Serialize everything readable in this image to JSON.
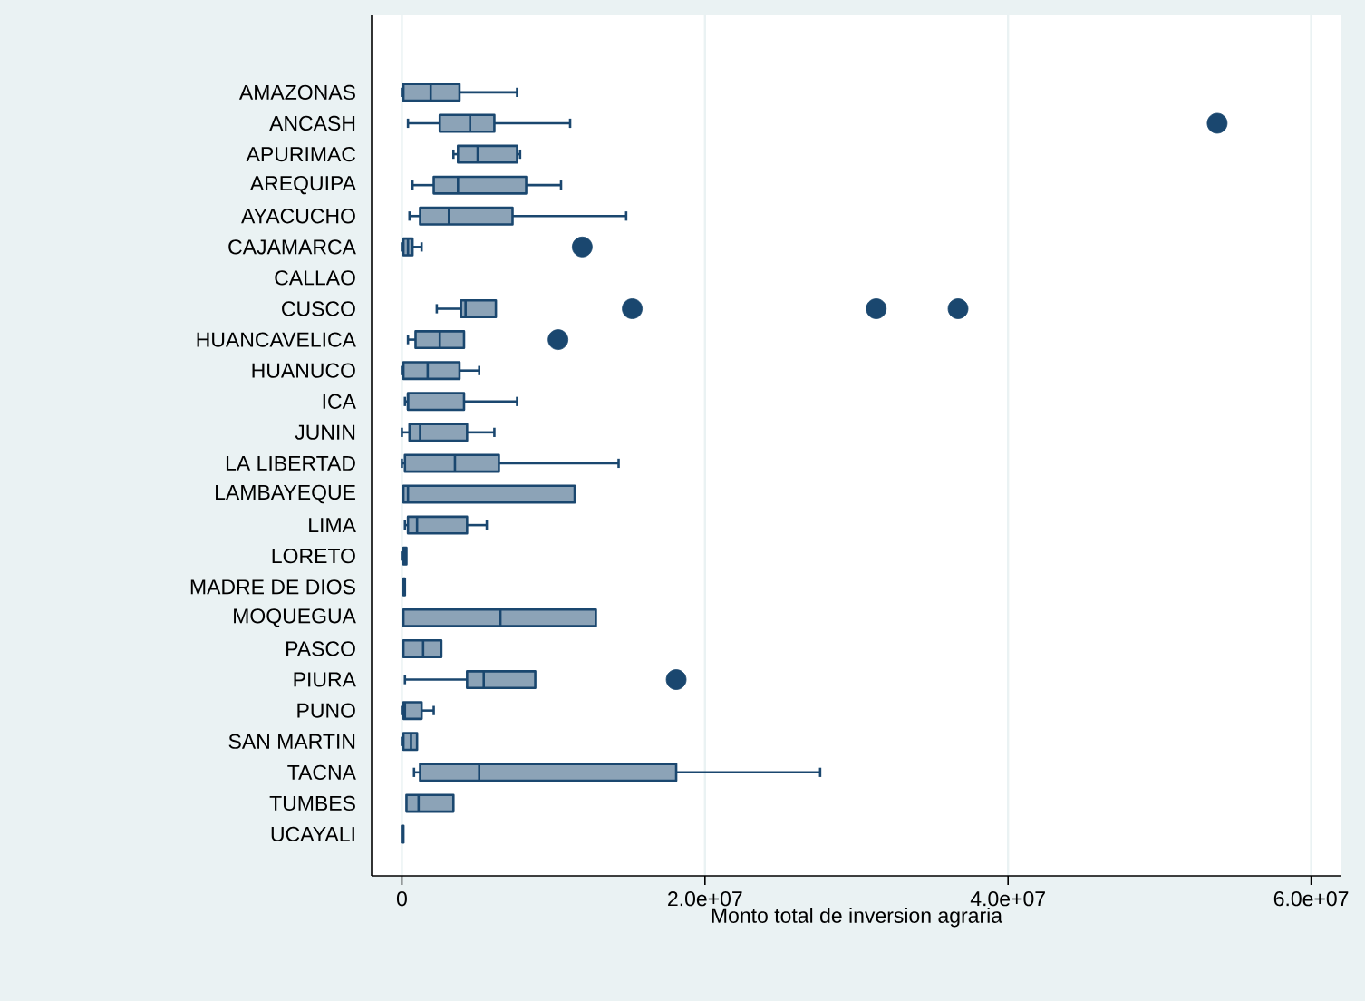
{
  "chart_data": {
    "type": "box",
    "orientation": "horizontal",
    "xlabel": "Monto total de inversion agraria",
    "categories": [
      "AMAZONAS",
      "ANCASH",
      "APURIMAC",
      "AREQUIPA",
      "AYACUCHO",
      "CAJAMARCA",
      "CALLAO",
      "CUSCO",
      "HUANCAVELICA",
      "HUANUCO",
      "ICA",
      "JUNIN",
      "LA LIBERTAD",
      "LAMBAYEQUE",
      "LIMA",
      "LORETO",
      "MADRE DE DIOS",
      "MOQUEGUA",
      "PASCO",
      "PIURA",
      "PUNO",
      "SAN MARTIN",
      "TACNA",
      "TUMBES",
      "UCAYALI"
    ],
    "xlim": [
      -2000000,
      62000000
    ],
    "xticks": [
      0,
      {
        "value": 20000000,
        "label": "2.0e+07"
      },
      {
        "value": 40000000,
        "label": "4.0e+07"
      },
      {
        "value": 60000000,
        "label": "6.0e+07"
      }
    ],
    "grid": "x",
    "series": [
      {
        "color": "#1a476f",
        "boxes": [
          {
            "low": 0,
            "q1": 100000,
            "median": 1900000,
            "q3": 3800000,
            "high": 7600000
          },
          {
            "low": 400000,
            "q1": 2500000,
            "median": 4500000,
            "q3": 6100000,
            "high": 11100000,
            "outliers": [
              53800000
            ]
          },
          {
            "low": 3400000,
            "q1": 3700000,
            "median": 5000000,
            "q3": 7600000,
            "high": 7800000
          },
          {
            "low": 700000,
            "q1": 2100000,
            "median": 3700000,
            "q3": 8200000,
            "high": 10500000
          },
          {
            "low": 500000,
            "q1": 1200000,
            "median": 3100000,
            "q3": 7300000,
            "high": 14800000
          },
          {
            "low": 0,
            "q1": 100000,
            "median": 400000,
            "q3": 700000,
            "high": 1300000,
            "outliers": [
              11900000
            ]
          },
          null,
          {
            "low": 2300000,
            "q1": 3900000,
            "median": 4200000,
            "q3": 6200000,
            "high": 6200000,
            "outliers": [
              15200000,
              31300000,
              36700000
            ]
          },
          {
            "low": 400000,
            "q1": 900000,
            "median": 2500000,
            "q3": 4100000,
            "high": 4100000,
            "outliers": [
              10300000
            ]
          },
          {
            "low": 0,
            "q1": 100000,
            "median": 1700000,
            "q3": 3800000,
            "high": 5100000
          },
          {
            "low": 200000,
            "q1": 400000,
            "median": 400000,
            "q3": 4100000,
            "high": 7600000
          },
          {
            "low": 0,
            "q1": 500000,
            "median": 1200000,
            "q3": 4300000,
            "high": 6100000
          },
          {
            "low": 0,
            "q1": 200000,
            "median": 3500000,
            "q3": 6400000,
            "high": 14300000
          },
          {
            "low": 100000,
            "q1": 100000,
            "median": 400000,
            "q3": 11400000,
            "high": 11400000
          },
          {
            "low": 200000,
            "q1": 400000,
            "median": 1000000,
            "q3": 4300000,
            "high": 5600000
          },
          {
            "low": 0,
            "q1": 100000,
            "median": 200000,
            "q3": 300000,
            "high": 300000
          },
          {
            "low": 100000,
            "q1": 100000,
            "median": 100000,
            "q3": 200000,
            "high": 200000
          },
          {
            "low": 100000,
            "q1": 100000,
            "median": 6500000,
            "q3": 12800000,
            "high": 12800000
          },
          {
            "low": 100000,
            "q1": 100000,
            "median": 1400000,
            "q3": 2600000,
            "high": 2600000
          },
          {
            "low": 200000,
            "q1": 4300000,
            "median": 5400000,
            "q3": 8800000,
            "high": 8800000,
            "outliers": [
              18100000
            ]
          },
          {
            "low": 0,
            "q1": 100000,
            "median": 200000,
            "q3": 1300000,
            "high": 2100000
          },
          {
            "low": 0,
            "q1": 100000,
            "median": 600000,
            "q3": 1000000,
            "high": 1000000
          },
          {
            "low": 800000,
            "q1": 1200000,
            "median": 5100000,
            "q3": 18100000,
            "high": 27600000
          },
          {
            "low": 300000,
            "q1": 300000,
            "median": 1100000,
            "q3": 3400000,
            "high": 3400000
          },
          {
            "low": 0,
            "q1": 0,
            "median": 50000,
            "q3": 100000,
            "high": 100000
          }
        ]
      }
    ]
  }
}
